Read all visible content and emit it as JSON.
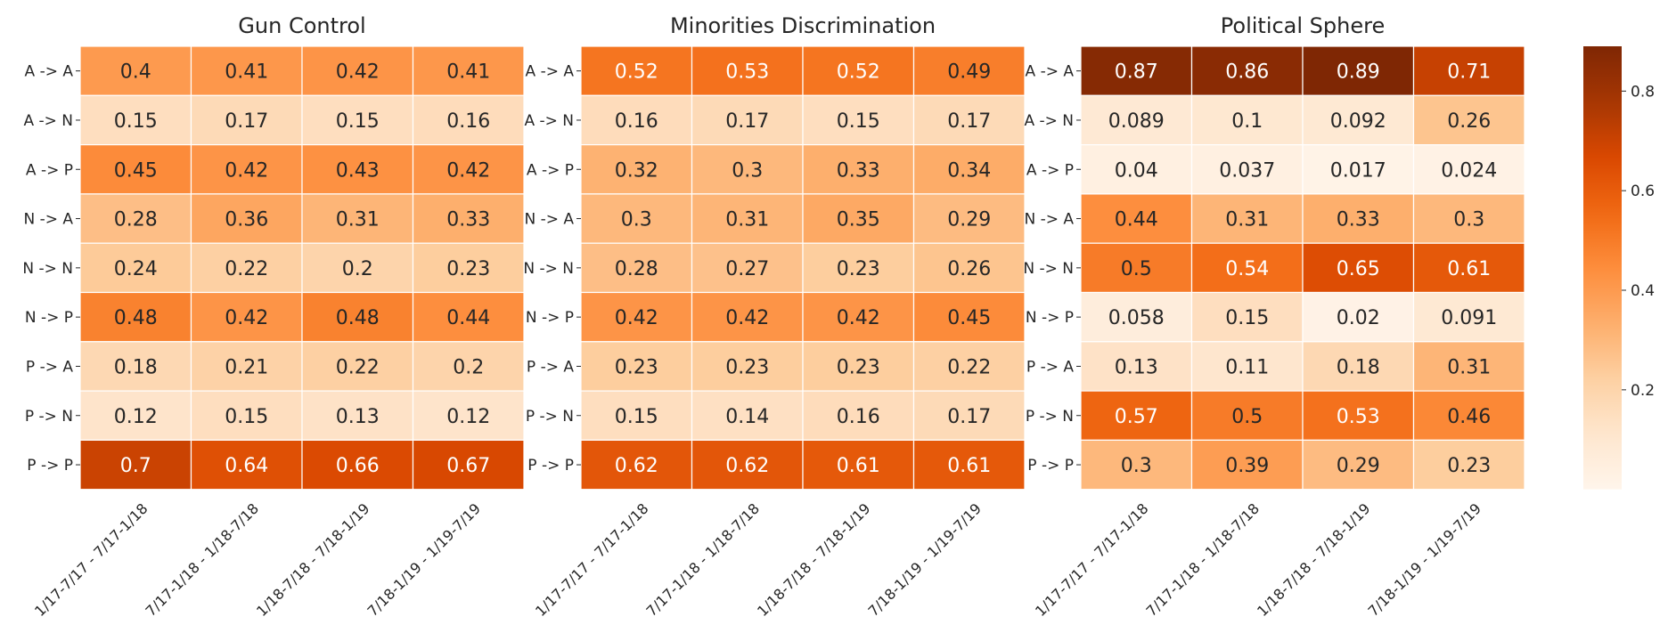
{
  "chart_data": {
    "type": "heatmap",
    "colormap": "Oranges",
    "row_labels": [
      "A -> A",
      "A -> N",
      "A -> P",
      "N -> A",
      "N -> N",
      "N -> P",
      "P -> A",
      "P -> N",
      "P -> P"
    ],
    "column_labels": [
      "1/17-7/17 - 7/17-1/18",
      "7/17-1/18 - 1/18-7/18",
      "1/18-7/18 - 7/18-1/19",
      "7/18-1/19 - 1/19-7/19"
    ],
    "value_range": [
      0,
      0.89
    ],
    "colorbar_ticks": [
      0.2,
      0.4,
      0.6,
      0.8
    ],
    "panels": [
      {
        "title": "Gun Control",
        "values": [
          [
            0.4,
            0.41,
            0.42,
            0.41
          ],
          [
            0.15,
            0.17,
            0.15,
            0.16
          ],
          [
            0.45,
            0.42,
            0.43,
            0.42
          ],
          [
            0.28,
            0.36,
            0.31,
            0.33
          ],
          [
            0.24,
            0.22,
            0.2,
            0.23
          ],
          [
            0.48,
            0.42,
            0.48,
            0.44
          ],
          [
            0.18,
            0.21,
            0.22,
            0.2
          ],
          [
            0.12,
            0.15,
            0.13,
            0.12
          ],
          [
            0.7,
            0.64,
            0.66,
            0.67
          ]
        ]
      },
      {
        "title": "Minorities Discrimination",
        "values": [
          [
            0.52,
            0.53,
            0.52,
            0.49
          ],
          [
            0.16,
            0.17,
            0.15,
            0.17
          ],
          [
            0.32,
            0.3,
            0.33,
            0.34
          ],
          [
            0.3,
            0.31,
            0.35,
            0.29
          ],
          [
            0.28,
            0.27,
            0.23,
            0.26
          ],
          [
            0.42,
            0.42,
            0.42,
            0.45
          ],
          [
            0.23,
            0.23,
            0.23,
            0.22
          ],
          [
            0.15,
            0.14,
            0.16,
            0.17
          ],
          [
            0.62,
            0.62,
            0.61,
            0.61
          ]
        ]
      },
      {
        "title": "Political Sphere",
        "values": [
          [
            0.87,
            0.86,
            0.89,
            0.71
          ],
          [
            0.089,
            0.1,
            0.092,
            0.26
          ],
          [
            0.04,
            0.037,
            0.017,
            0.024
          ],
          [
            0.44,
            0.31,
            0.33,
            0.3
          ],
          [
            0.5,
            0.54,
            0.65,
            0.61
          ],
          [
            0.058,
            0.15,
            0.02,
            0.091
          ],
          [
            0.13,
            0.11,
            0.18,
            0.31
          ],
          [
            0.57,
            0.5,
            0.53,
            0.46
          ],
          [
            0.3,
            0.39,
            0.29,
            0.23
          ]
        ]
      }
    ]
  }
}
